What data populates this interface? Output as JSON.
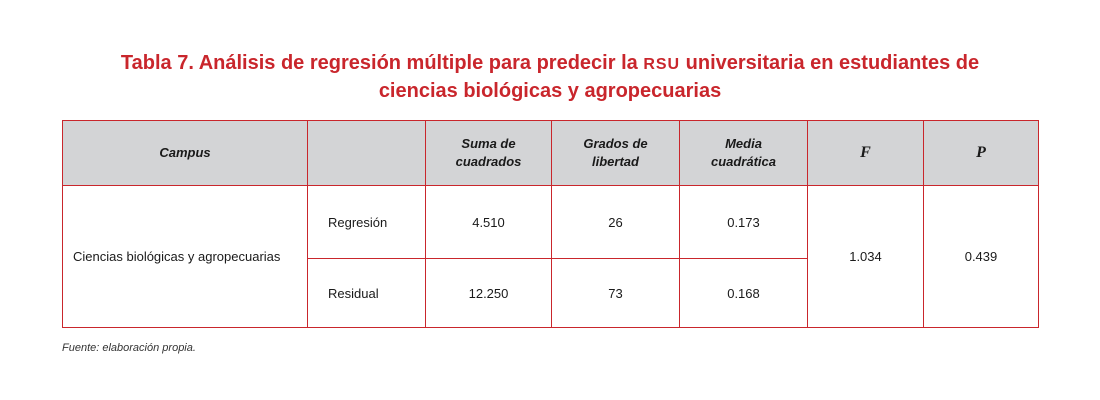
{
  "title": {
    "line1_pre": "Tabla 7. Análisis de regresión múltiple para predecir la ",
    "line1_abbr": "RSU",
    "line1_post": " universitaria en estudiantes de",
    "line2": "ciencias biológicas y agropecuarias"
  },
  "table": {
    "headers": {
      "campus": "Campus",
      "blank": "",
      "suma_1": "Suma de",
      "suma_2": "cuadrados",
      "grados_1": "Grados de",
      "grados_2": "libertad",
      "media_1": "Media",
      "media_2": "cuadrática",
      "f": "F",
      "p": "P"
    },
    "campus": "Ciencias biológicas y agropecuarias",
    "rows": [
      {
        "source": "Regresión",
        "suma": "4.510",
        "grados": "26",
        "media": "0.173"
      },
      {
        "source": "Residual",
        "suma": "12.250",
        "grados": "73",
        "media": "0.168"
      }
    ],
    "f_value": "1.034",
    "p_value": "0.439"
  },
  "footnote": "Fuente: elaboración propia.",
  "colors": {
    "accent_red": "#c9262c",
    "header_gray": "#d3d4d6"
  }
}
